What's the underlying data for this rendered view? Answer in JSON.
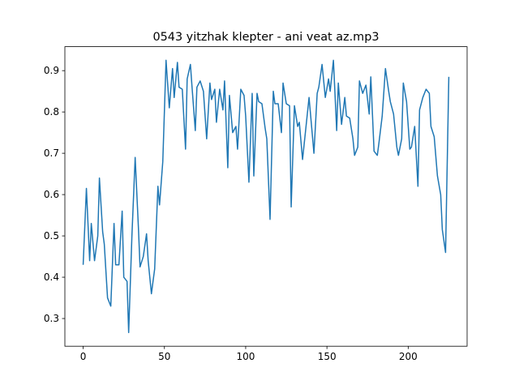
{
  "chart_data": {
    "type": "line",
    "title": "0543 yitzhak klepter - ani veat az.mp3",
    "x": [
      0,
      2,
      4,
      5,
      7,
      9,
      10,
      12,
      13,
      15,
      17,
      19,
      20,
      22,
      24,
      25,
      27,
      28,
      30,
      32,
      34,
      35,
      37,
      39,
      40,
      42,
      44,
      46,
      47,
      49,
      51,
      53,
      55,
      56,
      58,
      59,
      61,
      63,
      64,
      66,
      67,
      69,
      70,
      72,
      74,
      76,
      78,
      79,
      81,
      82,
      84,
      86,
      87,
      89,
      90,
      92,
      94,
      95,
      97,
      99,
      100,
      102,
      104,
      105,
      107,
      108,
      110,
      112,
      113,
      115,
      117,
      118,
      120,
      122,
      123,
      125,
      127,
      128,
      130,
      132,
      133,
      135,
      137,
      139,
      140,
      142,
      144,
      145,
      147,
      149,
      151,
      152,
      154,
      156,
      157,
      159,
      161,
      162,
      164,
      166,
      167,
      169,
      170,
      172,
      174,
      176,
      177,
      179,
      181,
      182,
      184,
      186,
      188,
      189,
      191,
      193,
      194,
      196,
      197,
      199,
      201,
      202,
      204,
      206,
      207,
      209,
      211,
      213,
      214,
      216,
      218,
      220,
      221,
      223,
      225
    ],
    "series": [
      {
        "color": "#1f77b4",
        "values": [
          0.43,
          0.615,
          0.44,
          0.53,
          0.44,
          0.5,
          0.64,
          0.51,
          0.48,
          0.35,
          0.33,
          0.53,
          0.43,
          0.43,
          0.56,
          0.4,
          0.39,
          0.266,
          0.5,
          0.69,
          0.52,
          0.425,
          0.45,
          0.505,
          0.44,
          0.36,
          0.42,
          0.62,
          0.575,
          0.68,
          0.925,
          0.81,
          0.905,
          0.835,
          0.92,
          0.86,
          0.855,
          0.71,
          0.88,
          0.915,
          0.86,
          0.755,
          0.86,
          0.875,
          0.85,
          0.735,
          0.87,
          0.83,
          0.855,
          0.775,
          0.855,
          0.805,
          0.875,
          0.665,
          0.84,
          0.75,
          0.765,
          0.71,
          0.855,
          0.84,
          0.79,
          0.63,
          0.845,
          0.645,
          0.845,
          0.825,
          0.82,
          0.76,
          0.735,
          0.54,
          0.85,
          0.82,
          0.82,
          0.75,
          0.87,
          0.82,
          0.815,
          0.57,
          0.815,
          0.765,
          0.775,
          0.685,
          0.76,
          0.835,
          0.79,
          0.7,
          0.845,
          0.86,
          0.915,
          0.835,
          0.88,
          0.85,
          0.925,
          0.755,
          0.87,
          0.77,
          0.835,
          0.79,
          0.785,
          0.735,
          0.695,
          0.715,
          0.875,
          0.845,
          0.865,
          0.795,
          0.885,
          0.705,
          0.695,
          0.725,
          0.79,
          0.905,
          0.85,
          0.825,
          0.795,
          0.715,
          0.695,
          0.735,
          0.87,
          0.825,
          0.71,
          0.715,
          0.765,
          0.62,
          0.805,
          0.835,
          0.855,
          0.845,
          0.765,
          0.74,
          0.645,
          0.6,
          0.515,
          0.46,
          0.885
        ]
      }
    ],
    "xlim": [
      -11.25,
      236.25
    ],
    "xticks": [
      0,
      50,
      100,
      150,
      200
    ],
    "ylim": [
      0.233,
      0.958
    ],
    "yticks": [
      0.3,
      0.4,
      0.5,
      0.6,
      0.7,
      0.8,
      0.9
    ]
  }
}
